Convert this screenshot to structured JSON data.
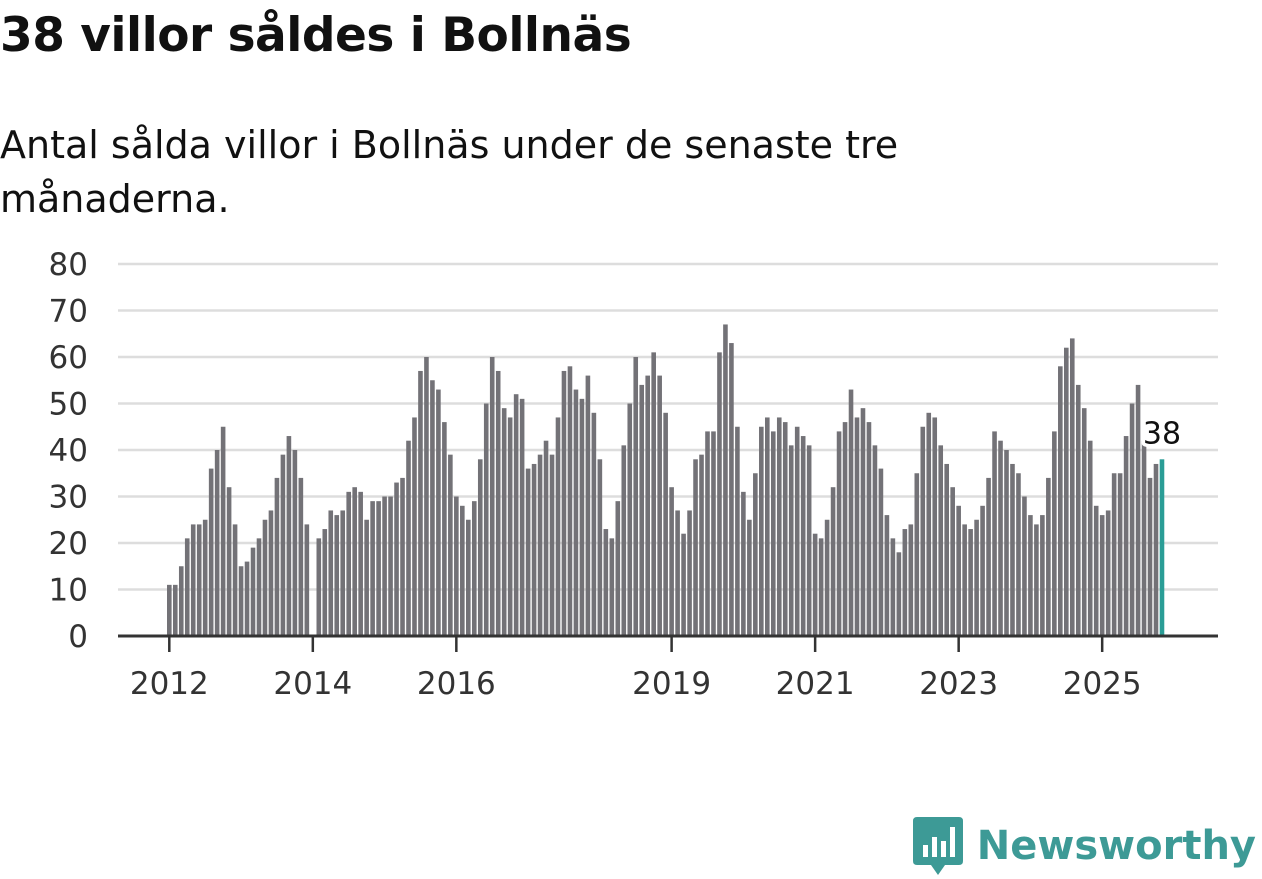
{
  "title": "38 villor såldes i Bollnäs",
  "subtitle": "Antal sålda villor i Bollnäs under de senaste tre månaderna.",
  "brand": {
    "name": "Newsworthy",
    "icon": "newsworthy-logo-icon"
  },
  "colors": {
    "bar": "#737277",
    "highlight": "#2a9d96",
    "grid": "#dddddd",
    "axis": "#333333",
    "brand": "#3d9a96"
  },
  "chart_data": {
    "type": "bar",
    "title": "38 villor såldes i Bollnäs",
    "xlabel": "",
    "ylabel": "",
    "ylim": [
      0,
      80
    ],
    "yticks": [
      0,
      10,
      20,
      30,
      40,
      50,
      60,
      70,
      80
    ],
    "grid": true,
    "xtick_labels": [
      "2012",
      "2014",
      "2016",
      "2019",
      "2021",
      "2023",
      "2025"
    ],
    "xtick_index": [
      0,
      24,
      48,
      84,
      108,
      132,
      156
    ],
    "series": [
      {
        "name": "Antal sålda villor (rullande tre månader)",
        "start": "2012-01",
        "values": [
          11,
          11,
          15,
          21,
          24,
          24,
          25,
          36,
          40,
          45,
          32,
          24,
          15,
          16,
          19,
          21,
          25,
          27,
          34,
          39,
          43,
          40,
          34,
          24,
          0,
          21,
          23,
          27,
          26,
          27,
          31,
          32,
          31,
          25,
          29,
          29,
          30,
          30,
          33,
          34,
          42,
          47,
          57,
          60,
          55,
          53,
          46,
          39,
          30,
          28,
          25,
          29,
          38,
          50,
          60,
          57,
          49,
          47,
          52,
          51,
          36,
          37,
          39,
          42,
          39,
          47,
          57,
          58,
          53,
          51,
          56,
          48,
          38,
          23,
          21,
          29,
          41,
          50,
          60,
          54,
          56,
          61,
          56,
          48,
          32,
          27,
          22,
          27,
          38,
          39,
          44,
          44,
          61,
          67,
          63,
          45,
          31,
          25,
          35,
          45,
          47,
          44,
          47,
          46,
          41,
          45,
          43,
          41,
          22,
          21,
          25,
          32,
          44,
          46,
          53,
          47,
          49,
          46,
          41,
          36,
          26,
          21,
          18,
          23,
          24,
          35,
          45,
          48,
          47,
          41,
          37,
          32,
          28,
          24,
          23,
          25,
          28,
          34,
          44,
          42,
          40,
          37,
          35,
          30,
          26,
          24,
          26,
          34,
          44,
          58,
          62,
          64,
          54,
          49,
          42,
          28,
          26,
          27,
          35,
          35,
          43,
          50,
          54,
          42,
          34,
          37,
          38
        ]
      }
    ],
    "annotation": {
      "label": "38",
      "target": "last"
    }
  }
}
